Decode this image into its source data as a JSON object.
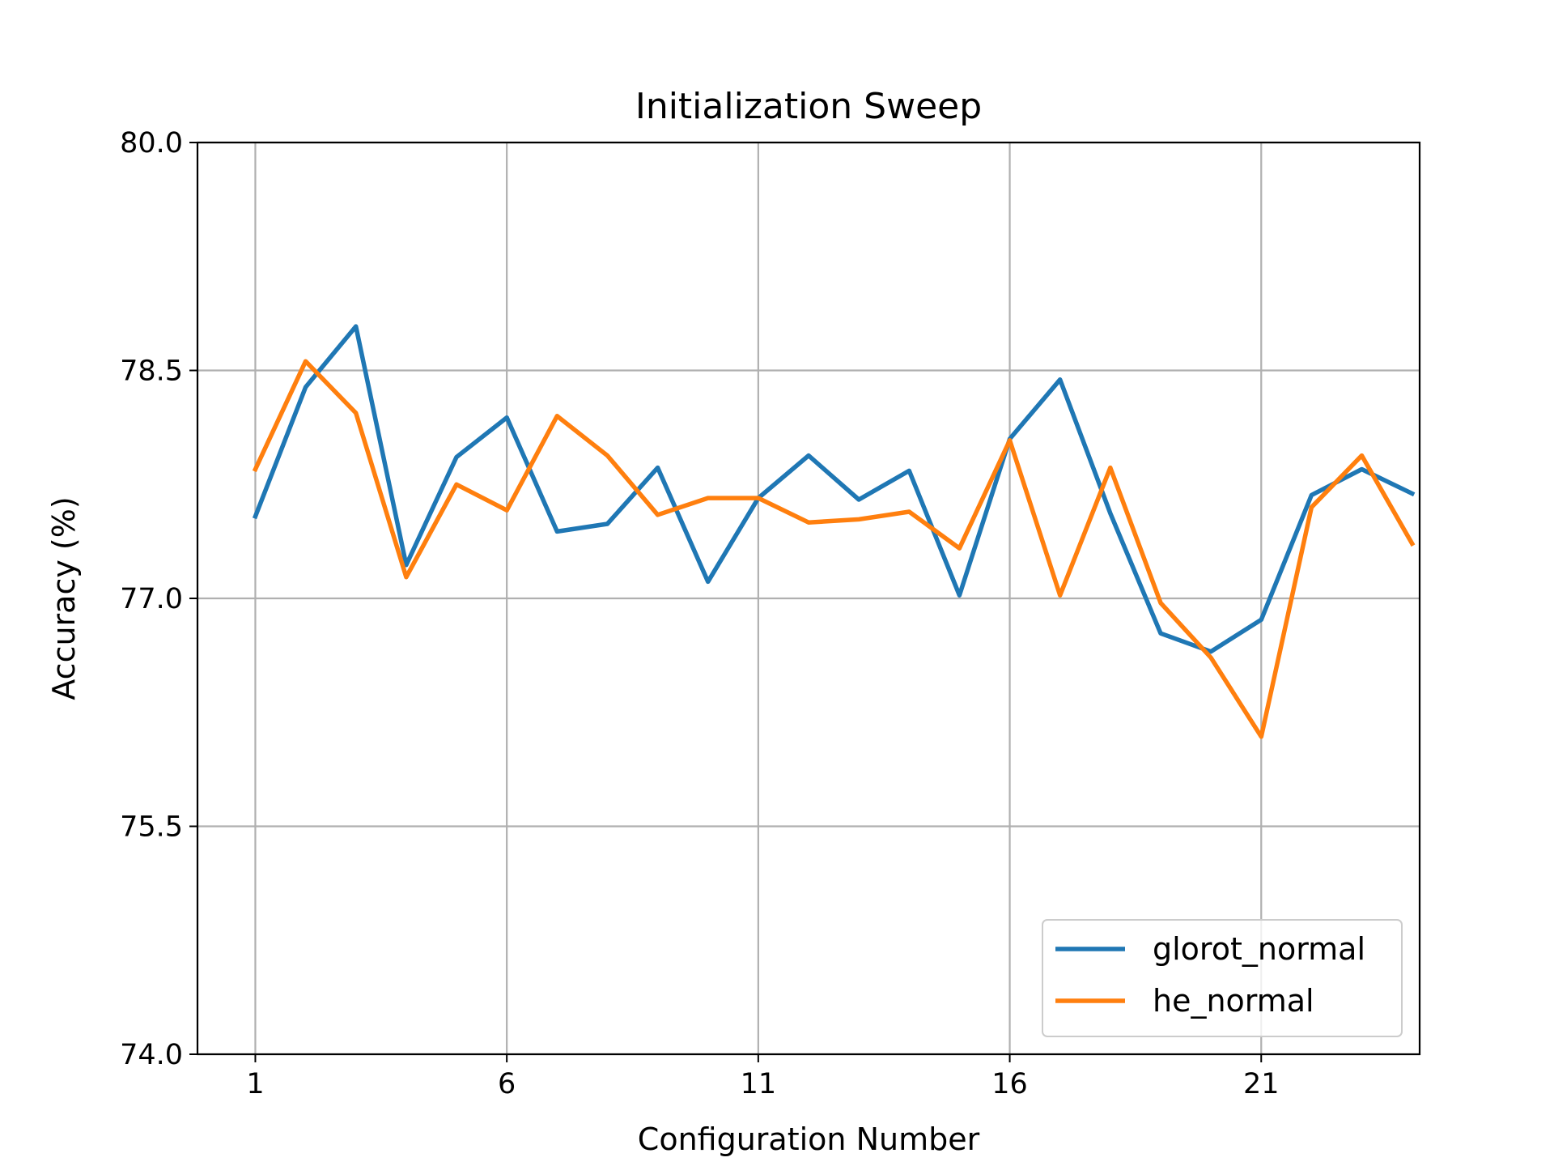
{
  "chart_data": {
    "type": "line",
    "title": "Initialization Sweep",
    "xlabel": "Configuration Number",
    "ylabel": "Accuracy (%)",
    "xlim": [
      -0.15,
      24.15
    ],
    "ylim": [
      74.0,
      80.0
    ],
    "xticks": [
      1,
      6,
      11,
      16,
      21
    ],
    "yticks": [
      74.0,
      75.5,
      77.0,
      78.5,
      80.0
    ],
    "ytick_labels": [
      "74.0",
      "75.5",
      "77.0",
      "78.5",
      "80.0"
    ],
    "grid": true,
    "legend_position": "lower-right",
    "x": [
      1,
      2,
      3,
      4,
      5,
      6,
      7,
      8,
      9,
      10,
      11,
      12,
      13,
      14,
      15,
      16,
      17,
      18,
      19,
      20,
      21,
      22,
      23,
      24
    ],
    "series": [
      {
        "name": "glorot_normal",
        "color": "#1f77b4",
        "values": [
          77.54,
          78.39,
          78.79,
          77.22,
          77.93,
          78.19,
          77.44,
          77.49,
          77.86,
          77.11,
          77.66,
          77.94,
          77.65,
          77.84,
          77.02,
          78.05,
          78.44,
          77.56,
          76.77,
          76.65,
          76.86,
          77.68,
          77.85,
          77.69
        ]
      },
      {
        "name": "he_normal",
        "color": "#ff7f0e",
        "values": [
          77.85,
          78.56,
          78.22,
          77.14,
          77.75,
          77.58,
          78.2,
          77.94,
          77.55,
          77.66,
          77.66,
          77.5,
          77.52,
          77.57,
          77.33,
          78.04,
          77.02,
          77.86,
          76.97,
          76.61,
          76.09,
          77.6,
          77.94,
          77.36
        ]
      }
    ]
  }
}
